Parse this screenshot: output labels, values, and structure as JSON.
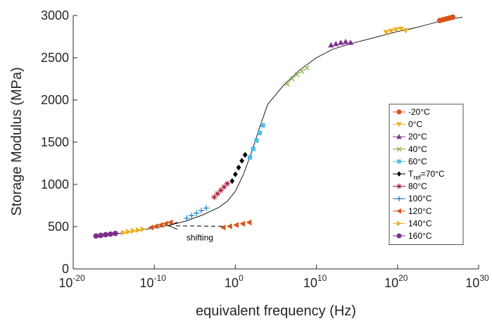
{
  "chart_data": {
    "type": "scatter",
    "title": "",
    "xlabel": "equivalent frequency (Hz)",
    "ylabel": "Storage Modulus (MPa)",
    "x_scale": "log",
    "xlim_exponent": [
      -20,
      30
    ],
    "ylim": [
      0,
      3000
    ],
    "x_ticks": [
      {
        "base": "10",
        "exp": "-20"
      },
      {
        "base": "10",
        "exp": "-10"
      },
      {
        "base": "10",
        "exp": "0"
      },
      {
        "base": "10",
        "exp": "10"
      },
      {
        "base": "10",
        "exp": "20"
      },
      {
        "base": "10",
        "exp": "30"
      }
    ],
    "y_ticks": [
      "0",
      "500",
      "1000",
      "1500",
      "2000",
      "2500",
      "3000"
    ],
    "grid": false,
    "legend_position": "right",
    "master_curve": {
      "color": "#000000",
      "points": [
        [
          -17.0,
          375
        ],
        [
          -16.0,
          395
        ],
        [
          -14.0,
          425
        ],
        [
          -12.0,
          455
        ],
        [
          -10.0,
          485
        ],
        [
          -8.0,
          520
        ],
        [
          -6.0,
          570
        ],
        [
          -4.0,
          640
        ],
        [
          -2.0,
          730
        ],
        [
          -1.0,
          800
        ],
        [
          0.0,
          920
        ],
        [
          1.0,
          1120
        ],
        [
          2.0,
          1380
        ],
        [
          3.0,
          1680
        ],
        [
          4.0,
          1950
        ],
        [
          6.0,
          2180
        ],
        [
          8.0,
          2360
        ],
        [
          10.0,
          2500
        ],
        [
          12.0,
          2600
        ],
        [
          14.0,
          2660
        ],
        [
          16.0,
          2710
        ],
        [
          18.0,
          2760
        ],
        [
          20.0,
          2810
        ],
        [
          22.0,
          2850
        ],
        [
          24.0,
          2900
        ],
        [
          26.0,
          2950
        ],
        [
          28.0,
          2980
        ]
      ]
    },
    "series": [
      {
        "name": "-20°C",
        "marker": "circle",
        "color": "#D95319",
        "x_exp": [
          25.2,
          25.6,
          26.0,
          26.4,
          26.8
        ],
        "y": [
          2940,
          2950,
          2960,
          2970,
          2980
        ]
      },
      {
        "name": "0°C",
        "marker": "triangle-down",
        "color": "#EDB120",
        "x_exp": [
          18.6,
          19.2,
          19.8,
          20.4,
          21.0
        ],
        "y": [
          2800,
          2815,
          2830,
          2840,
          2820
        ]
      },
      {
        "name": "20°C",
        "marker": "triangle-up",
        "color": "#7E2F8E",
        "x_exp": [
          11.8,
          12.4,
          13.0,
          13.6,
          14.2
        ],
        "y": [
          2650,
          2665,
          2680,
          2690,
          2680
        ]
      },
      {
        "name": "40°C",
        "marker": "x",
        "color": "#77AC30",
        "x_exp": [
          6.4,
          7.0,
          7.6,
          8.2,
          8.8
        ],
        "y": [
          2190,
          2250,
          2300,
          2340,
          2380
        ]
      },
      {
        "name": "60°C",
        "marker": "square",
        "color": "#4DBEEE",
        "x_exp": [
          1.8,
          2.2,
          2.6,
          3.0,
          3.4
        ],
        "y": [
          1320,
          1420,
          1520,
          1610,
          1700
        ]
      },
      {
        "name": "T_ref=70°C",
        "label_main": "T",
        "label_sub": "ref",
        "label_rest": "=70°C",
        "marker": "diamond",
        "color": "#000000",
        "x_exp": [
          -0.4,
          0.0,
          0.4,
          0.8,
          1.2
        ],
        "y": [
          1040,
          1120,
          1200,
          1280,
          1350
        ]
      },
      {
        "name": "80°C",
        "marker": "asterisk",
        "color": "#A2142F",
        "x_exp": [
          -2.6,
          -2.2,
          -1.8,
          -1.4,
          -1.0
        ],
        "y": [
          850,
          890,
          930,
          970,
          1010
        ]
      },
      {
        "name": "100°C",
        "marker": "plus",
        "color": "#0072BD",
        "x_exp": [
          -6.0,
          -5.4,
          -4.8,
          -4.2,
          -3.6
        ],
        "y": [
          600,
          630,
          660,
          690,
          720
        ]
      },
      {
        "name": "120°C",
        "marker": "triangle-left",
        "color": "#D95319",
        "x_exp": [
          -10.4,
          -9.8,
          -9.2,
          -8.6,
          -8.0
        ],
        "y": [
          490,
          505,
          520,
          535,
          550
        ]
      },
      {
        "name": "140°C",
        "marker": "triangle-right",
        "color": "#EDB120",
        "x_exp": [
          -13.8,
          -13.2,
          -12.6,
          -12.0,
          -11.4
        ],
        "y": [
          430,
          440,
          450,
          460,
          470
        ]
      },
      {
        "name": "160°C",
        "marker": "circle",
        "color": "#7E2F8E",
        "x_exp": [
          -17.2,
          -16.6,
          -16.0,
          -15.4,
          -14.8
        ],
        "y": [
          390,
          397,
          405,
          412,
          420
        ]
      }
    ],
    "unshifted_series": {
      "name": "120°C (before shift)",
      "marker": "triangle-left",
      "color": "#D95319",
      "x_exp": [
        -1.5,
        -0.7,
        0.1,
        0.9,
        1.7
      ],
      "y": [
        490,
        505,
        520,
        535,
        550
      ]
    },
    "annotation": {
      "text": "shifting",
      "from": [
        -1.6,
        505
      ],
      "to": [
        -8.2,
        510
      ]
    }
  }
}
